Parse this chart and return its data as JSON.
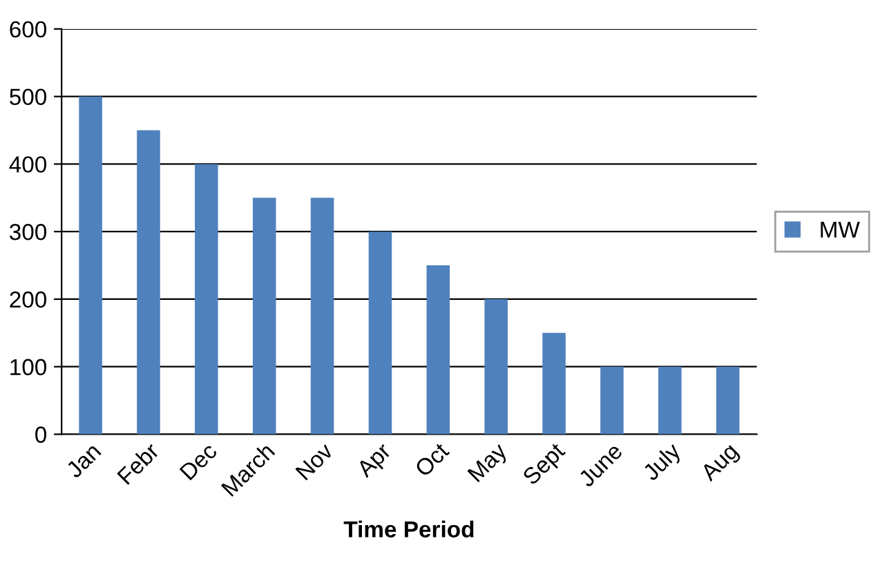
{
  "chart_data": {
    "type": "bar",
    "xlabel": "Time Period",
    "categories": [
      "Jan",
      "Febr",
      "Dec",
      "March",
      "Nov",
      "Apr",
      "Oct",
      "May",
      "Sept",
      "June",
      "July",
      "Aug"
    ],
    "series": [
      {
        "name": "MW",
        "color": "#4f81bd",
        "values": [
          500,
          450,
          400,
          350,
          350,
          300,
          250,
          200,
          150,
          100,
          100,
          100
        ]
      }
    ],
    "ylim": [
      0,
      600
    ],
    "yticks": [
      0,
      100,
      200,
      300,
      400,
      500,
      600
    ],
    "grid": "y",
    "legend": "right"
  }
}
